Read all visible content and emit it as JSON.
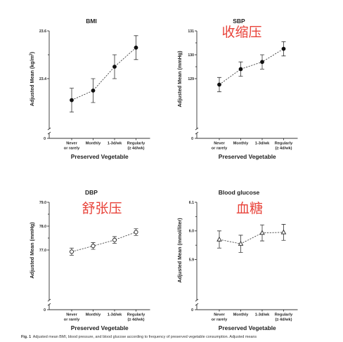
{
  "caption": {
    "fig_label": "Fig. 1",
    "text": "Adjusted mean BMI, blood pressure, and blood glucose according to frequency of preserved vegetable consumption. Adjusted means"
  },
  "chart_data": [
    {
      "type": "line",
      "title": "BMI",
      "annotation": "",
      "ylabel_main": "Adjusted Mean (kg/m",
      "ylabel_sup": "2",
      "ylabel_end": ")",
      "xlabel": "Preserved Vegetable",
      "marker": "filled-circle",
      "categories": [
        [
          "Never",
          "or rarely"
        ],
        [
          "Monthly"
        ],
        [
          "1-3d/wk"
        ],
        [
          "Regularly",
          "(≥ 4d/wk)"
        ]
      ],
      "values": [
        23.31,
        23.35,
        23.45,
        23.53
      ],
      "err_low": [
        23.26,
        23.3,
        23.4,
        23.48
      ],
      "err_high": [
        23.36,
        23.4,
        23.5,
        23.58
      ],
      "ylim": [
        23.3,
        23.6
      ],
      "yticks": [
        23.4,
        23.6
      ],
      "ytick_labels": [
        "23.4",
        "23.6"
      ],
      "zero_label": "0"
    },
    {
      "type": "line",
      "title": "SBP",
      "annotation": "收缩压",
      "ylabel_main": "Adjusted Mean (mmHg)",
      "ylabel_sup": "",
      "ylabel_end": "",
      "xlabel": "Preserved Vegetable",
      "marker": "filled-circle",
      "categories": [
        [
          "Never",
          "or rarely"
        ],
        [
          "Monthly"
        ],
        [
          "1-3d/wk"
        ],
        [
          "Regularly",
          "(≥ 4d/wk)"
        ]
      ],
      "values": [
        128.75,
        129.4,
        129.7,
        130.25
      ],
      "err_low": [
        128.45,
        129.1,
        129.4,
        129.95
      ],
      "err_high": [
        129.05,
        129.7,
        130.0,
        130.55
      ],
      "ylim": [
        128.0,
        131.0
      ],
      "yticks": [
        129,
        130,
        131
      ],
      "ytick_labels": [
        "129",
        "130",
        "131"
      ],
      "zero_label": "0"
    },
    {
      "type": "line",
      "title": "DBP",
      "annotation": "舒张压",
      "ylabel_main": "Adjusted Mean (mmHg)",
      "ylabel_sup": "",
      "ylabel_end": "",
      "xlabel": "Preserved Vegetable",
      "marker": "open-circle",
      "categories": [
        [
          "Never",
          "or rarely"
        ],
        [
          "Monthly"
        ],
        [
          "1-3d/wk"
        ],
        [
          "Regularly",
          "(≥ 4d/wk)"
        ]
      ],
      "values": [
        76.93,
        77.17,
        77.42,
        77.75
      ],
      "err_low": [
        76.78,
        77.03,
        77.28,
        77.61
      ],
      "err_high": [
        77.08,
        77.31,
        77.56,
        77.89
      ],
      "ylim": [
        76.0,
        79.0
      ],
      "yticks": [
        77.0,
        78.0,
        79.0
      ],
      "ytick_labels": [
        "77.0",
        "78.0",
        "79.0"
      ],
      "zero_label": "0"
    },
    {
      "type": "line",
      "title": "Blood glucose",
      "annotation": "血糖",
      "ylabel_main": "Adjusted Mean (mmol/liter)",
      "ylabel_sup": "",
      "ylabel_end": "",
      "xlabel": "Preserved Vegetable",
      "marker": "open-triangle",
      "categories": [
        [
          "Never",
          "or rarely"
        ],
        [
          "Monthly"
        ],
        [
          "1-3d/wk"
        ],
        [
          "Regularly",
          "(≥ 4d/wk)"
        ]
      ],
      "values": [
        5.97,
        5.955,
        5.993,
        5.995
      ],
      "err_low": [
        5.94,
        5.925,
        5.965,
        5.967
      ],
      "err_high": [
        6.0,
        5.985,
        6.021,
        6.023
      ],
      "ylim": [
        5.85,
        6.1
      ],
      "yticks": [
        5.9,
        6.0,
        6.1
      ],
      "ytick_labels": [
        "5.9",
        "6.0",
        "6.1"
      ],
      "zero_label": "0"
    }
  ]
}
